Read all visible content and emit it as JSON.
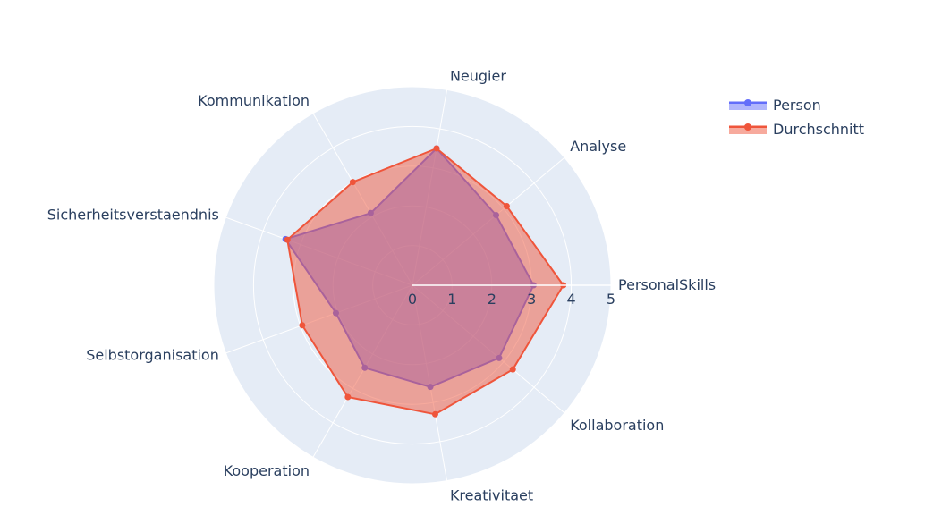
{
  "chart_data": {
    "type": "radar",
    "categories": [
      "PersonalSkills",
      "Analyse",
      "Neugier",
      "Kommunikation",
      "Sicherheitsverstaendnis",
      "Selbstorganisation",
      "Kooperation",
      "Kreativitaet",
      "Kollaboration"
    ],
    "series": [
      {
        "name": "Person",
        "color": "#636efa",
        "values": [
          3.05,
          2.75,
          3.5,
          2.1,
          3.4,
          2.05,
          2.4,
          2.6,
          2.85
        ]
      },
      {
        "name": "Durchschnitt",
        "color": "#ef553b",
        "values": [
          3.8,
          3.1,
          3.5,
          3.0,
          3.35,
          2.95,
          3.25,
          3.3,
          3.3
        ]
      }
    ],
    "radial_range": [
      0,
      5
    ],
    "radial_ticks": [
      "0",
      "1",
      "2",
      "3",
      "4",
      "5"
    ],
    "angular_start_deg": 0,
    "angular_direction": "counterclockwise",
    "grid": true,
    "legend_position": "top-right"
  }
}
